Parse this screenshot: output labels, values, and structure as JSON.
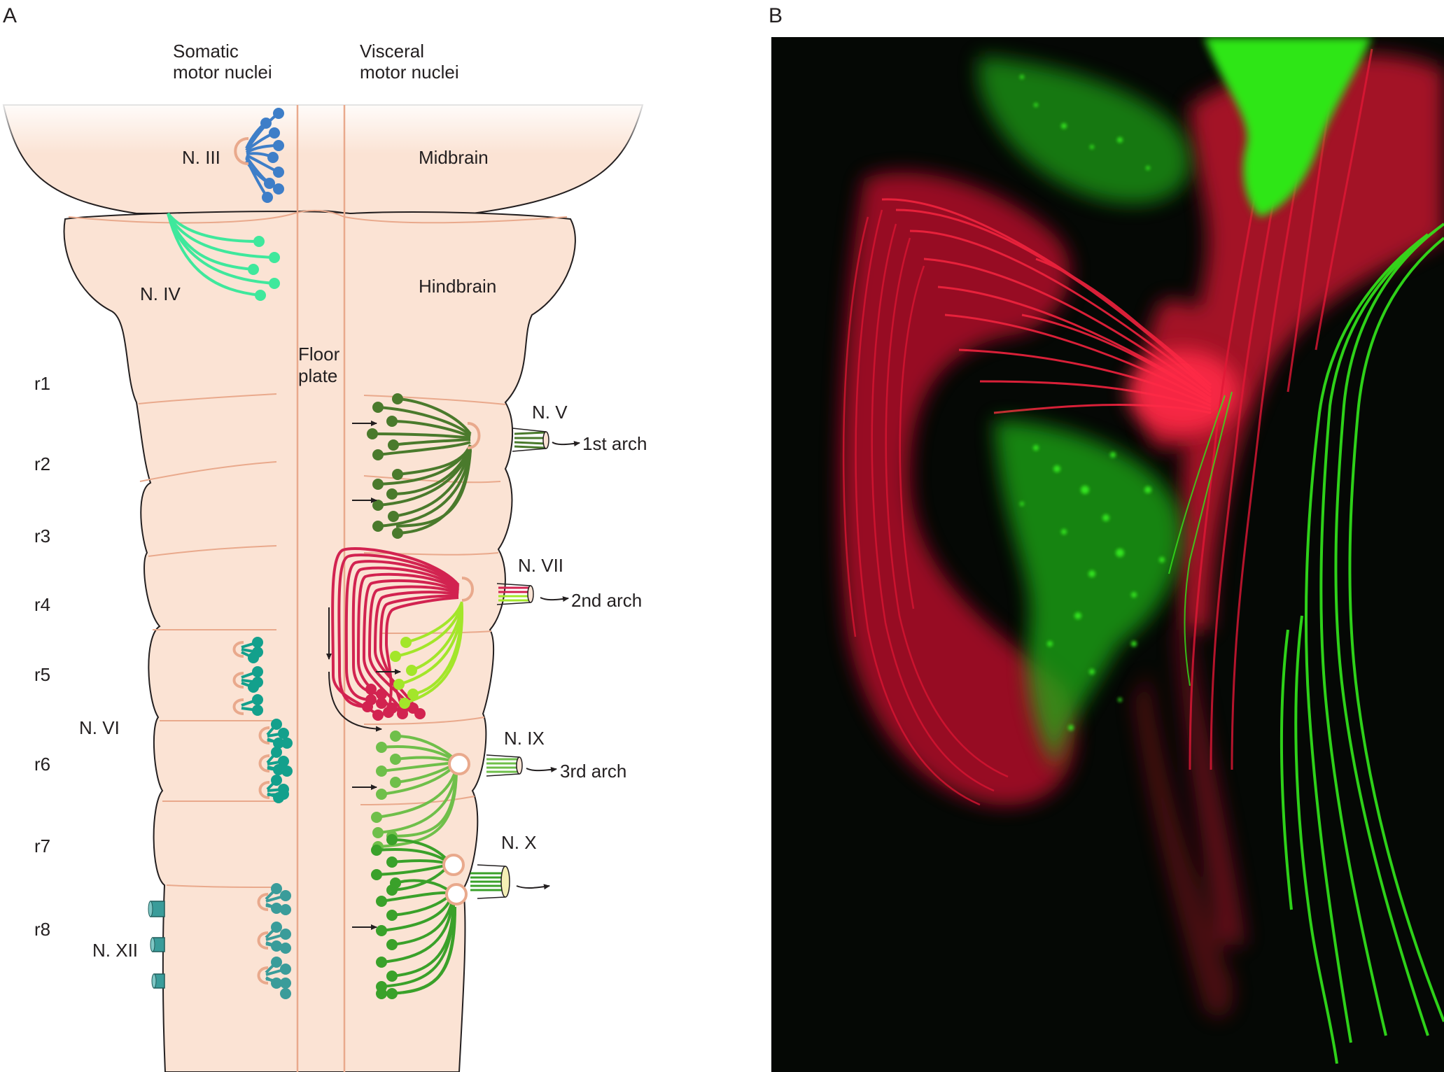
{
  "panel_a": {
    "letter": "A",
    "header": {
      "somatic_line1": "Somatic",
      "somatic_line2": "motor nuclei",
      "visceral_line1": "Visceral",
      "visceral_line2": "motor nuclei"
    },
    "regions": {
      "midbrain": "Midbrain",
      "hindbrain": "Hindbrain"
    },
    "floor_plate_line1": "Floor",
    "floor_plate_line2": "plate",
    "rhombomeres": [
      "r1",
      "r2",
      "r3",
      "r4",
      "r5",
      "r6",
      "r7",
      "r8"
    ],
    "nuclei": {
      "n3": "N. III",
      "n4": "N. IV",
      "n5": "N. V",
      "n6": "N. VI",
      "n7": "N. VII",
      "n9": "N. IX",
      "n10": "N. X",
      "n12": "N. XII"
    },
    "targets": {
      "first_arch": "1st arch",
      "second_arch": "2nd arch",
      "third_arch": "3rd arch"
    },
    "colors": {
      "tissue": "#fbe3d4",
      "outline": "#231f20",
      "boundary": "#e9a98c",
      "n3": "#3e7ec8",
      "n4": "#3fe89c",
      "n5": "#4a7a2c",
      "n6": "#13a08c",
      "n7": "#d22350",
      "n7_second": "#a3e62a",
      "n9": "#6fbf4a",
      "n10": "#3aa12a",
      "n12": "#3a9c9a"
    }
  },
  "panel_b": {
    "letter": "B",
    "image": "fluorescence-micrograph",
    "colors": {
      "background": "#050805",
      "red": "#e8193c",
      "green": "#2ee619"
    }
  }
}
